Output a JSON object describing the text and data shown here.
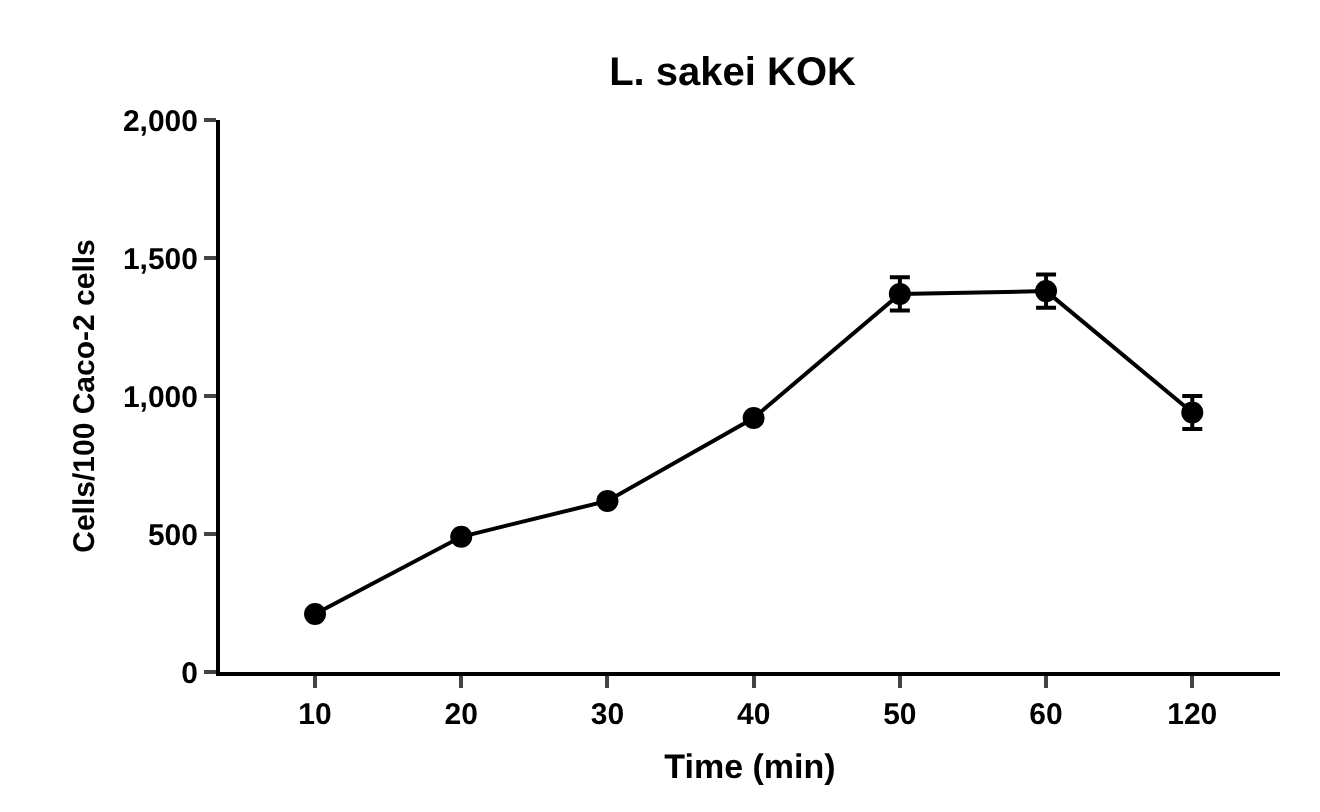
{
  "chart_data": {
    "type": "line",
    "title": "L. sakei KOK",
    "xlabel": "Time (min)",
    "ylabel": "Cells/100 Caco-2 cells",
    "categories": [
      "10",
      "20",
      "30",
      "40",
      "50",
      "60",
      "120"
    ],
    "series": [
      {
        "color": "#000000",
        "values": [
          210,
          490,
          620,
          920,
          1370,
          1380,
          940
        ],
        "errors": [
          null,
          null,
          null,
          null,
          60,
          60,
          60
        ]
      }
    ],
    "ylim": [
      0,
      2000
    ],
    "yticks": [
      0,
      {
        "value": 500,
        "label": "500"
      },
      {
        "value": 1000,
        "label": "1,000"
      },
      {
        "value": 1500,
        "label": "1,500"
      },
      {
        "value": 2000,
        "label": "2,000"
      }
    ],
    "grid": false,
    "marker": "circle",
    "line_style": "solid"
  }
}
